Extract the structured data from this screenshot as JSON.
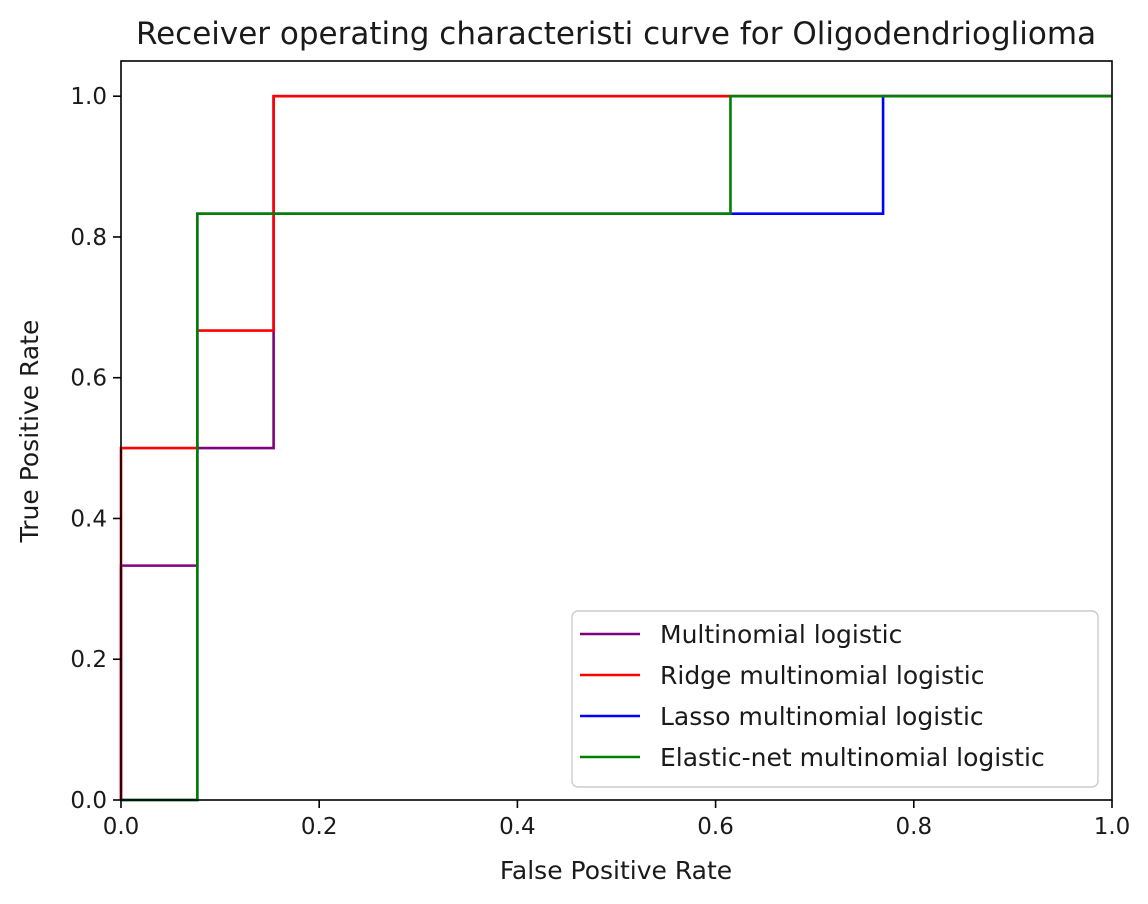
{
  "chart_data": {
    "type": "line",
    "title": "Receiver operating characteristi curve for Oligodendrioglioma",
    "xlabel": "False Positive Rate",
    "ylabel": "True Positive Rate",
    "xlim": [
      0,
      1
    ],
    "ylim": [
      0,
      1.05
    ],
    "xticks": [
      0.0,
      0.2,
      0.4,
      0.6,
      0.8,
      1.0
    ],
    "yticks": [
      0.0,
      0.2,
      0.4,
      0.6,
      0.8,
      1.0
    ],
    "xtick_labels": [
      "0.0",
      "0.2",
      "0.4",
      "0.6",
      "0.8",
      "1.0"
    ],
    "ytick_labels": [
      "0.0",
      "0.2",
      "0.4",
      "0.6",
      "0.8",
      "1.0"
    ],
    "grid": false,
    "legend_position": "lower-right",
    "series": [
      {
        "name": "Multinomial logistic",
        "color": "#800080",
        "points": [
          [
            0,
            0
          ],
          [
            0,
            0.333
          ],
          [
            0.077,
            0.333
          ],
          [
            0.077,
            0.5
          ],
          [
            0.154,
            0.5
          ],
          [
            0.154,
            1.0
          ],
          [
            1.0,
            1.0
          ]
        ]
      },
      {
        "name": "Ridge multinomial logistic",
        "color": "#ff0000",
        "points": [
          [
            0,
            0
          ],
          [
            0,
            0.5
          ],
          [
            0.077,
            0.5
          ],
          [
            0.077,
            0.667
          ],
          [
            0.154,
            0.667
          ],
          [
            0.154,
            1.0
          ],
          [
            1.0,
            1.0
          ]
        ]
      },
      {
        "name": "Lasso multinomial logistic",
        "color": "#0000ff",
        "points": [
          [
            0,
            0
          ],
          [
            0.077,
            0
          ],
          [
            0.077,
            0.833
          ],
          [
            0.769,
            0.833
          ],
          [
            0.769,
            1.0
          ],
          [
            1.0,
            1.0
          ]
        ]
      },
      {
        "name": "Elastic-net multinomial logistic",
        "color": "#008000",
        "points": [
          [
            0,
            0
          ],
          [
            0.077,
            0
          ],
          [
            0.077,
            0.833
          ],
          [
            0.615,
            0.833
          ],
          [
            0.615,
            1.0
          ],
          [
            1.0,
            1.0
          ]
        ]
      }
    ]
  }
}
